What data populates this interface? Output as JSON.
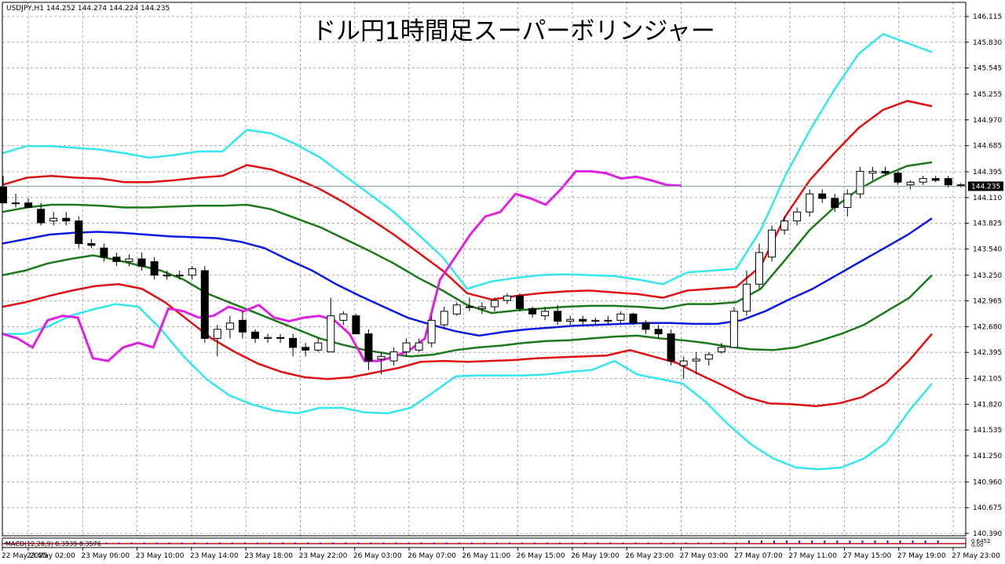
{
  "window": {
    "symbol_info": "USDJPY,H1  144.252 144.274 144.224 144.235"
  },
  "chart_data": {
    "type": "candlestick",
    "title": "ドル円1時間足スーパーボリンジャー",
    "x_labels": [
      "22 May 2025",
      "23 May 02:00",
      "23 May 06:00",
      "23 May 10:00",
      "23 May 14:00",
      "23 May 18:00",
      "23 May 22:00",
      "26 May 03:00",
      "26 May 07:00",
      "26 May 11:00",
      "26 May 15:00",
      "26 May 19:00",
      "26 May 23:00",
      "27 May 03:00",
      "27 May 07:00",
      "27 May 11:00",
      "27 May 15:00",
      "27 May 19:00",
      "27 May 23:00"
    ],
    "y_ticks": [
      "146.115",
      "145.830",
      "145.545",
      "145.255",
      "144.970",
      "144.685",
      "144.395",
      "144.110",
      "143.825",
      "143.540",
      "143.250",
      "142.965",
      "142.680",
      "142.395",
      "142.105",
      "141.820",
      "141.535",
      "141.250",
      "140.960",
      "140.675",
      "140.390"
    ],
    "ylim": [
      140.39,
      146.115
    ],
    "current_price": "144.235",
    "grid": true,
    "candles": [
      [
        144.23,
        144.35,
        144.1,
        144.05
      ],
      [
        144.05,
        144.15,
        144.0,
        144.05
      ],
      [
        144.05,
        144.1,
        144.0,
        144.0
      ],
      [
        143.98,
        144.05,
        143.8,
        143.83
      ],
      [
        143.85,
        143.95,
        143.8,
        143.88
      ],
      [
        143.88,
        143.95,
        143.8,
        143.85
      ],
      [
        143.85,
        143.9,
        143.55,
        143.6
      ],
      [
        143.6,
        143.65,
        143.55,
        143.58
      ],
      [
        143.55,
        143.6,
        143.4,
        143.45
      ],
      [
        143.45,
        143.5,
        143.35,
        143.4
      ],
      [
        143.4,
        143.48,
        143.35,
        143.43
      ],
      [
        143.43,
        143.5,
        143.3,
        143.35
      ],
      [
        143.4,
        143.45,
        143.2,
        143.25
      ],
      [
        143.25,
        143.3,
        143.2,
        143.25
      ],
      [
        143.25,
        143.3,
        143.2,
        143.25
      ],
      [
        143.25,
        143.35,
        143.2,
        143.32
      ],
      [
        143.3,
        143.35,
        142.5,
        142.55
      ],
      [
        142.55,
        142.7,
        142.35,
        142.65
      ],
      [
        142.65,
        142.8,
        142.55,
        142.72
      ],
      [
        142.75,
        142.85,
        142.55,
        142.62
      ],
      [
        142.62,
        142.65,
        142.5,
        142.55
      ],
      [
        142.55,
        142.6,
        142.5,
        142.56
      ],
      [
        142.56,
        142.6,
        142.5,
        142.55
      ],
      [
        142.55,
        142.6,
        142.35,
        142.45
      ],
      [
        142.45,
        142.5,
        142.35,
        142.42
      ],
      [
        142.42,
        142.55,
        142.4,
        142.5
      ],
      [
        142.4,
        143.0,
        142.4,
        142.8
      ],
      [
        142.75,
        142.85,
        142.7,
        142.82
      ],
      [
        142.8,
        142.82,
        142.6,
        142.6
      ],
      [
        142.6,
        142.65,
        142.2,
        142.3
      ],
      [
        142.32,
        142.4,
        142.15,
        142.35
      ],
      [
        142.3,
        142.45,
        142.25,
        142.4
      ],
      [
        142.4,
        142.55,
        142.35,
        142.5
      ],
      [
        142.42,
        142.55,
        142.4,
        142.5
      ],
      [
        142.5,
        142.8,
        142.45,
        142.75
      ],
      [
        142.7,
        142.9,
        142.65,
        142.85
      ],
      [
        142.82,
        142.95,
        142.8,
        142.92
      ],
      [
        142.9,
        143.0,
        142.85,
        142.9
      ],
      [
        142.88,
        142.95,
        142.82,
        142.9
      ],
      [
        142.9,
        143.0,
        142.85,
        142.97
      ],
      [
        142.97,
        143.05,
        142.93,
        143.02
      ],
      [
        143.02,
        143.05,
        142.85,
        142.88
      ],
      [
        142.88,
        142.9,
        142.78,
        142.82
      ],
      [
        142.8,
        142.9,
        142.75,
        142.85
      ],
      [
        142.85,
        142.92,
        142.7,
        142.74
      ],
      [
        142.74,
        142.8,
        142.7,
        142.76
      ],
      [
        142.76,
        142.8,
        142.7,
        142.74
      ],
      [
        142.74,
        142.78,
        142.7,
        142.75
      ],
      [
        142.75,
        142.8,
        142.7,
        142.75
      ],
      [
        142.75,
        142.85,
        142.72,
        142.82
      ],
      [
        142.82,
        142.83,
        142.7,
        142.72
      ],
      [
        142.72,
        142.75,
        142.6,
        142.65
      ],
      [
        142.65,
        142.7,
        142.55,
        142.6
      ],
      [
        142.6,
        142.65,
        142.25,
        142.3
      ],
      [
        142.25,
        142.35,
        142.1,
        142.3
      ],
      [
        142.3,
        142.4,
        142.15,
        142.32
      ],
      [
        142.32,
        142.4,
        142.25,
        142.37
      ],
      [
        142.4,
        142.5,
        142.38,
        142.45
      ],
      [
        142.45,
        142.9,
        142.45,
        142.85
      ],
      [
        142.85,
        143.3,
        142.8,
        143.15
      ],
      [
        143.15,
        143.6,
        143.1,
        143.5
      ],
      [
        143.45,
        143.8,
        143.4,
        143.75
      ],
      [
        143.75,
        143.9,
        143.7,
        143.85
      ],
      [
        143.85,
        144.0,
        143.8,
        143.95
      ],
      [
        143.95,
        144.2,
        143.9,
        144.15
      ],
      [
        144.15,
        144.2,
        144.05,
        144.1
      ],
      [
        144.1,
        144.15,
        143.95,
        144.0
      ],
      [
        144.0,
        144.2,
        143.9,
        144.15
      ],
      [
        144.15,
        144.45,
        144.1,
        144.4
      ],
      [
        144.38,
        144.45,
        144.3,
        144.4
      ],
      [
        144.4,
        144.45,
        144.35,
        144.38
      ],
      [
        144.38,
        144.4,
        144.25,
        144.28
      ],
      [
        144.25,
        144.3,
        144.2,
        144.28
      ],
      [
        144.28,
        144.35,
        144.25,
        144.32
      ],
      [
        144.32,
        144.35,
        144.28,
        144.3
      ],
      [
        144.32,
        144.35,
        144.22,
        144.25
      ],
      [
        144.25,
        144.27,
        144.22,
        144.24
      ]
    ],
    "bands": {
      "sigma_plus3": [
        144.6,
        144.68,
        144.68,
        144.66,
        144.64,
        144.6,
        144.55,
        144.58,
        144.62,
        144.62,
        144.86,
        144.82,
        144.7,
        144.55,
        144.35,
        144.15,
        143.95,
        143.7,
        143.45,
        143.1,
        143.18,
        143.22,
        143.25,
        143.26,
        143.25,
        143.24,
        143.2,
        143.15,
        143.28,
        143.3,
        143.32,
        143.75,
        144.35,
        144.85,
        145.3,
        145.7,
        145.92,
        145.82,
        145.72
      ],
      "sigma_plus2": [
        144.25,
        144.33,
        144.35,
        144.33,
        144.32,
        144.28,
        144.28,
        144.3,
        144.33,
        144.35,
        144.47,
        144.42,
        144.32,
        144.2,
        144.05,
        143.88,
        143.7,
        143.5,
        143.3,
        143.05,
        142.98,
        143.02,
        143.05,
        143.07,
        143.08,
        143.06,
        143.04,
        143.0,
        143.08,
        143.1,
        143.12,
        143.35,
        143.9,
        144.3,
        144.6,
        144.88,
        145.08,
        145.18,
        145.12
      ],
      "sigma_plus1": [
        143.95,
        144.0,
        144.03,
        144.03,
        144.02,
        144.0,
        144.0,
        144.01,
        144.02,
        144.02,
        144.03,
        143.98,
        143.88,
        143.78,
        143.65,
        143.52,
        143.38,
        143.22,
        143.08,
        142.92,
        142.83,
        142.86,
        142.88,
        142.9,
        142.91,
        142.91,
        142.9,
        142.88,
        142.93,
        142.93,
        142.95,
        143.1,
        143.42,
        143.75,
        144.0,
        144.2,
        144.35,
        144.46,
        144.5
      ],
      "middle": [
        143.6,
        143.65,
        143.7,
        143.72,
        143.73,
        143.72,
        143.7,
        143.68,
        143.67,
        143.66,
        143.62,
        143.55,
        143.42,
        143.3,
        143.15,
        143.02,
        142.9,
        142.78,
        142.7,
        142.63,
        142.58,
        142.62,
        142.65,
        142.67,
        142.69,
        142.7,
        142.71,
        142.72,
        142.72,
        142.71,
        142.71,
        142.75,
        142.85,
        142.98,
        143.1,
        143.25,
        143.4,
        143.55,
        143.7,
        143.88
      ],
      "sigma_minus1": [
        143.25,
        143.3,
        143.38,
        143.43,
        143.47,
        143.42,
        143.36,
        143.3,
        143.2,
        143.05,
        142.95,
        142.85,
        142.75,
        142.65,
        142.55,
        142.48,
        142.42,
        142.38,
        142.35,
        142.37,
        142.42,
        142.45,
        142.47,
        142.5,
        142.52,
        142.53,
        142.55,
        142.57,
        142.58,
        142.55,
        142.53,
        142.5,
        142.46,
        142.43,
        142.42,
        142.45,
        142.52,
        142.6,
        142.7,
        142.85,
        143.0,
        143.25
      ],
      "sigma_minus2": [
        142.9,
        142.95,
        143.02,
        143.08,
        143.13,
        143.15,
        143.1,
        142.95,
        142.75,
        142.55,
        142.4,
        142.27,
        142.18,
        142.12,
        142.1,
        142.12,
        142.17,
        142.22,
        142.29,
        142.3,
        142.29,
        142.3,
        142.31,
        142.33,
        142.34,
        142.35,
        142.36,
        142.42,
        142.35,
        142.28,
        142.15,
        142.03,
        141.9,
        141.83,
        141.82,
        141.8,
        141.83,
        141.9,
        142.05,
        142.3,
        142.6
      ],
      "sigma_minus3": [
        142.6,
        142.6,
        142.68,
        142.8,
        142.87,
        142.93,
        142.9,
        142.65,
        142.35,
        142.1,
        141.92,
        141.82,
        141.75,
        141.72,
        141.78,
        141.78,
        141.73,
        141.72,
        141.78,
        141.95,
        142.13,
        142.14,
        142.14,
        142.14,
        142.15,
        142.18,
        142.2,
        142.3,
        142.15,
        142.1,
        142.05,
        141.85,
        141.6,
        141.38,
        141.22,
        141.12,
        141.1,
        141.12,
        141.22,
        141.4,
        141.75,
        142.05
      ]
    },
    "chikou": [
      142.6,
      142.55,
      142.45,
      142.75,
      142.8,
      142.78,
      142.33,
      142.3,
      142.45,
      142.5,
      142.45,
      142.88,
      142.85,
      142.78,
      142.8,
      142.9,
      142.85,
      142.92,
      142.78,
      142.74,
      142.78,
      142.8,
      142.75,
      142.6,
      142.3,
      142.3,
      142.35,
      142.42,
      142.55,
      143.2,
      143.45,
      143.7,
      143.9,
      143.95,
      144.15,
      144.1,
      144.03,
      144.2,
      144.4,
      144.4,
      144.38,
      144.32,
      144.34,
      144.3,
      144.25,
      144.24
    ],
    "macd_label": "MACD(12,26,9) 0.3539 0.3576",
    "macd_ticks": [
      "0.6452",
      "0.00"
    ]
  }
}
